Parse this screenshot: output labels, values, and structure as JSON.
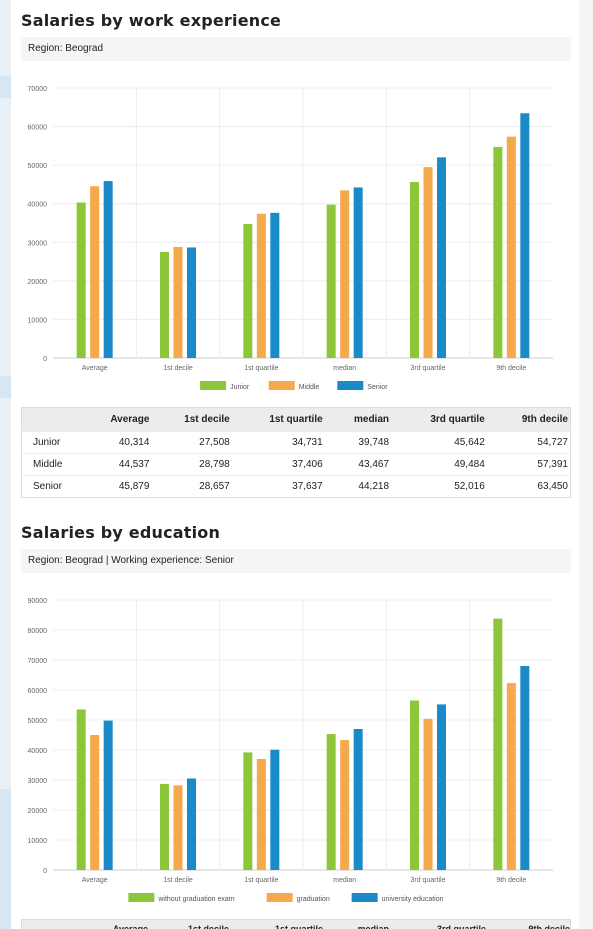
{
  "section1": {
    "title": "Salaries by work experience",
    "region": "Region: Beograd"
  },
  "section2": {
    "title": "Salaries by education",
    "region": "Region: Beograd | Working experience: Senior"
  },
  "table1": {
    "headers": [
      "",
      "Average",
      "1st decile",
      "1st quartile",
      "median",
      "3rd quartile",
      "9th decile"
    ],
    "rows": [
      {
        "label": "Junior",
        "values": [
          "40,314",
          "27,508",
          "34,731",
          "39,748",
          "45,642",
          "54,727"
        ]
      },
      {
        "label": "Middle",
        "values": [
          "44,537",
          "28,798",
          "37,406",
          "43,467",
          "49,484",
          "57,391"
        ]
      },
      {
        "label": "Senior",
        "values": [
          "45,879",
          "28,657",
          "37,637",
          "44,218",
          "52,016",
          "63,450"
        ]
      }
    ]
  },
  "chart_data": [
    {
      "type": "bar",
      "categories": [
        "Average",
        "1st decile",
        "1st quartile",
        "median",
        "3rd quartile",
        "9th decile"
      ],
      "series": [
        {
          "name": "Junior",
          "color": "#8cc739",
          "values": [
            40314,
            27508,
            34731,
            39748,
            45642,
            54727
          ]
        },
        {
          "name": "Middle",
          "color": "#f5a94a",
          "values": [
            44537,
            28798,
            37406,
            43467,
            49484,
            57391
          ]
        },
        {
          "name": "Senior",
          "color": "#1a8ac9",
          "values": [
            45879,
            28657,
            37637,
            44218,
            52016,
            63450
          ]
        }
      ],
      "ylim": [
        0,
        70000
      ],
      "yticks": [
        0,
        10000,
        20000,
        30000,
        40000,
        50000,
        60000,
        70000
      ],
      "grid": true,
      "legend": "bottom-center"
    },
    {
      "type": "bar",
      "categories": [
        "Average",
        "1st decile",
        "1st quartile",
        "median",
        "3rd quartile",
        "9th decile"
      ],
      "series": [
        {
          "name": "without graduation exam",
          "color": "#8cc739",
          "values": [
            53500,
            28700,
            39200,
            45300,
            56500,
            83800
          ]
        },
        {
          "name": "graduation",
          "color": "#f5a94a",
          "values": [
            45000,
            28200,
            37000,
            43300,
            50400,
            62300
          ]
        },
        {
          "name": "university education",
          "color": "#1a8ac9",
          "values": [
            49800,
            30500,
            40100,
            47000,
            55200,
            68000
          ]
        }
      ],
      "ylim": [
        0,
        90000
      ],
      "yticks": [
        0,
        10000,
        20000,
        30000,
        40000,
        50000,
        60000,
        70000,
        80000,
        90000
      ],
      "grid": true,
      "legend": "bottom-center"
    }
  ],
  "stub_headers": [
    "Average",
    "1st decile",
    "1st quartile",
    "median",
    "3rd quartile",
    "9th decile"
  ]
}
